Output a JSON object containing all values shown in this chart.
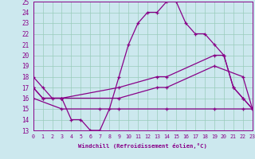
{
  "xlabel": "Windchill (Refroidissement éolien,°C)",
  "background_color": "#cce8ee",
  "grid_color": "#99ccbb",
  "line_color": "#880088",
  "xmin": 0,
  "xmax": 23,
  "ymin": 13,
  "ymax": 25,
  "yticks": [
    13,
    14,
    15,
    16,
    17,
    18,
    19,
    20,
    21,
    22,
    23,
    24,
    25
  ],
  "xticks": [
    0,
    1,
    2,
    3,
    4,
    5,
    6,
    7,
    8,
    9,
    10,
    11,
    12,
    13,
    14,
    15,
    16,
    17,
    18,
    19,
    20,
    21,
    22,
    23
  ],
  "line1_x": [
    0,
    1,
    2,
    3,
    4,
    5,
    6,
    7,
    8,
    9,
    10,
    11,
    12,
    13,
    14,
    15,
    16,
    17,
    18,
    19,
    20,
    21,
    22,
    23
  ],
  "line1_y": [
    18,
    17,
    16,
    16,
    14,
    14,
    13,
    13,
    15,
    18,
    21,
    23,
    24,
    24,
    25,
    25,
    23,
    22,
    22,
    21,
    20,
    17,
    16,
    15
  ],
  "line2_x": [
    0,
    1,
    3,
    9,
    13,
    14,
    19,
    20,
    21,
    22,
    23
  ],
  "line2_y": [
    17,
    16,
    16,
    17,
    18,
    18,
    20,
    20,
    17,
    16,
    15
  ],
  "line3_x": [
    0,
    1,
    3,
    9,
    13,
    14,
    19,
    22,
    23
  ],
  "line3_y": [
    17,
    16,
    16,
    16,
    17,
    17,
    19,
    18,
    15
  ],
  "line4_x": [
    0,
    3,
    7,
    9,
    14,
    19,
    22,
    23
  ],
  "line4_y": [
    16,
    15,
    15,
    15,
    15,
    15,
    15,
    15
  ]
}
